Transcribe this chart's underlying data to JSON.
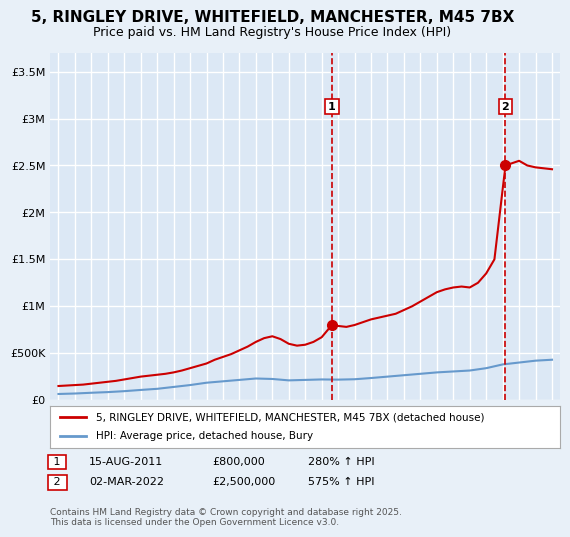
{
  "title": "5, RINGLEY DRIVE, WHITEFIELD, MANCHESTER, M45 7BX",
  "subtitle": "Price paid vs. HM Land Registry's House Price Index (HPI)",
  "xlabel": "",
  "ylabel": "",
  "background_color": "#e8f0f8",
  "plot_bg_color": "#dce8f5",
  "red_line_color": "#cc0000",
  "blue_line_color": "#6699cc",
  "grid_color": "#ffffff",
  "title_fontsize": 11,
  "subtitle_fontsize": 9,
  "ylim": [
    0,
    3700000
  ],
  "xlim": [
    1994.5,
    2025.5
  ],
  "yticks": [
    0,
    500000,
    1000000,
    1500000,
    2000000,
    2500000,
    3000000,
    3500000
  ],
  "ytick_labels": [
    "£0",
    "£500K",
    "£1M",
    "£1.5M",
    "£2M",
    "£2.5M",
    "£3M",
    "£3.5M"
  ],
  "xticks": [
    1995,
    1996,
    1997,
    1998,
    1999,
    2000,
    2001,
    2002,
    2003,
    2004,
    2005,
    2006,
    2007,
    2008,
    2009,
    2010,
    2011,
    2012,
    2013,
    2014,
    2015,
    2016,
    2017,
    2018,
    2019,
    2020,
    2021,
    2022,
    2023,
    2024,
    2025
  ],
  "marker1_x": 2011.62,
  "marker1_y": 800000,
  "marker1_label": "1",
  "marker1_date": "15-AUG-2011",
  "marker1_price": "£800,000",
  "marker1_hpi": "280% ↑ HPI",
  "marker2_x": 2022.17,
  "marker2_y": 2500000,
  "marker2_label": "2",
  "marker2_date": "02-MAR-2022",
  "marker2_price": "£2,500,000",
  "marker2_hpi": "575% ↑ HPI",
  "legend_line1": "5, RINGLEY DRIVE, WHITEFIELD, MANCHESTER, M45 7BX (detached house)",
  "legend_line2": "HPI: Average price, detached house, Bury",
  "footnote": "Contains HM Land Registry data © Crown copyright and database right 2025.\nThis data is licensed under the Open Government Licence v3.0.",
  "red_x": [
    1995.0,
    1995.5,
    1996.0,
    1996.5,
    1997.0,
    1997.5,
    1998.0,
    1998.5,
    1999.0,
    1999.5,
    2000.0,
    2000.5,
    2001.0,
    2001.5,
    2002.0,
    2002.5,
    2003.0,
    2003.5,
    2004.0,
    2004.5,
    2005.0,
    2005.5,
    2006.0,
    2006.5,
    2007.0,
    2007.5,
    2008.0,
    2008.5,
    2009.0,
    2009.5,
    2010.0,
    2010.5,
    2011.0,
    2011.62,
    2012.0,
    2012.5,
    2013.0,
    2013.5,
    2014.0,
    2014.5,
    2015.0,
    2015.5,
    2016.0,
    2016.5,
    2017.0,
    2017.5,
    2018.0,
    2018.5,
    2019.0,
    2019.5,
    2020.0,
    2020.5,
    2021.0,
    2021.5,
    2022.17,
    2022.5,
    2023.0,
    2023.5,
    2024.0,
    2024.5,
    2025.0
  ],
  "red_y": [
    150000,
    155000,
    160000,
    165000,
    175000,
    185000,
    195000,
    205000,
    220000,
    235000,
    250000,
    260000,
    270000,
    280000,
    295000,
    315000,
    340000,
    365000,
    390000,
    430000,
    460000,
    490000,
    530000,
    570000,
    620000,
    660000,
    680000,
    650000,
    600000,
    580000,
    590000,
    620000,
    670000,
    800000,
    790000,
    780000,
    800000,
    830000,
    860000,
    880000,
    900000,
    920000,
    960000,
    1000000,
    1050000,
    1100000,
    1150000,
    1180000,
    1200000,
    1210000,
    1200000,
    1250000,
    1350000,
    1500000,
    2500000,
    2520000,
    2550000,
    2500000,
    2480000,
    2470000,
    2460000
  ],
  "blue_x": [
    1995.0,
    1996.0,
    1997.0,
    1998.0,
    1999.0,
    2000.0,
    2001.0,
    2002.0,
    2003.0,
    2004.0,
    2005.0,
    2006.0,
    2007.0,
    2008.0,
    2009.0,
    2010.0,
    2011.0,
    2012.0,
    2013.0,
    2014.0,
    2015.0,
    2016.0,
    2017.0,
    2018.0,
    2019.0,
    2020.0,
    2021.0,
    2022.0,
    2023.0,
    2024.0,
    2025.0
  ],
  "blue_y": [
    65000,
    70000,
    78000,
    85000,
    95000,
    108000,
    120000,
    140000,
    160000,
    185000,
    200000,
    215000,
    230000,
    225000,
    210000,
    215000,
    220000,
    218000,
    222000,
    235000,
    250000,
    265000,
    280000,
    295000,
    305000,
    315000,
    340000,
    380000,
    400000,
    420000,
    430000
  ]
}
